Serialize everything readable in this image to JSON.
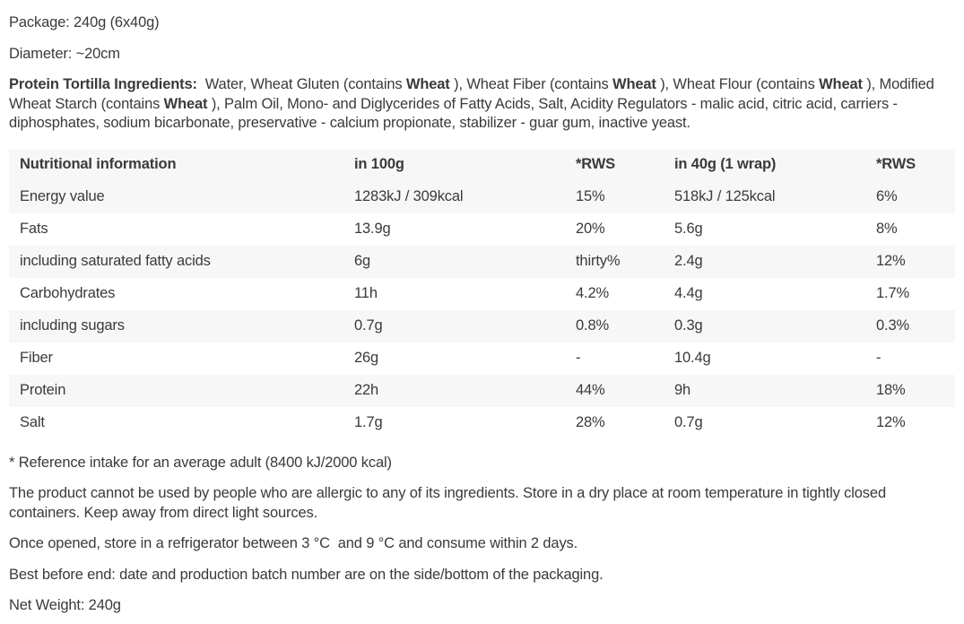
{
  "details": {
    "package": "Package: 240g (6x40g)",
    "diameter": "Diameter: ~20cm"
  },
  "ingredients": {
    "label": "Protein Tortilla Ingredients:",
    "segments": [
      {
        "text": "  Water, Wheat Gluten (contains ",
        "bold": false
      },
      {
        "text": "Wheat",
        "bold": true
      },
      {
        "text": " ), Wheat Fiber (contains ",
        "bold": false
      },
      {
        "text": "Wheat",
        "bold": true
      },
      {
        "text": " ), Wheat Flour (contains ",
        "bold": false
      },
      {
        "text": "Wheat",
        "bold": true
      },
      {
        "text": " ), Modified Wheat Starch (contains ",
        "bold": false
      },
      {
        "text": "Wheat",
        "bold": true
      },
      {
        "text": " ), Palm Oil, Mono- and Diglycerides of Fatty Acids, Salt, Acidity Regulators - malic acid, citric acid, carriers - diphosphates, sodium bicarbonate, preservative - calcium propionate, stabilizer - guar gum, inactive yeast.",
        "bold": false
      }
    ]
  },
  "nutrition_table": {
    "headers": [
      "Nutritional information",
      "in 100g",
      "*RWS",
      "in 40g (1 wrap)",
      "*RWS"
    ],
    "rows": [
      [
        "Energy value",
        "1283kJ / 309kcal",
        "15%",
        "518kJ / 125kcal",
        "6%"
      ],
      [
        "Fats",
        "13.9g",
        "20%",
        "5.6g",
        "8%"
      ],
      [
        "including saturated fatty acids",
        "6g",
        "thirty%",
        "2.4g",
        "12%"
      ],
      [
        "Carbohydrates",
        "11h",
        "4.2%",
        "4.4g",
        "1.7%"
      ],
      [
        "including sugars",
        "0.7g",
        "0.8%",
        "0.3g",
        "0.3%"
      ],
      [
        "Fiber",
        "26g",
        "-",
        "10.4g",
        "-"
      ],
      [
        "Protein",
        "22h",
        "44%",
        "9h",
        "18%"
      ],
      [
        "Salt",
        "1.7g",
        "28%",
        "0.7g",
        "12%"
      ]
    ]
  },
  "footnotes": {
    "reference_intake": "* Reference intake for an average adult (8400 kJ/2000 kcal)",
    "allergy_storage": "The product cannot be used by people who are allergic to any of its ingredients. Store in a dry place at room temperature in tightly closed containers. Keep away from direct light sources.",
    "opened_storage": "Once opened, store in a refrigerator between 3 °C  and 9 °C and consume within 2 days.",
    "best_before": "Best before end: date and production batch number are on the side/bottom of the packaging.",
    "net_weight": "Net Weight: 240g"
  },
  "colors": {
    "text": "#3a3a3a",
    "table_stripe": "#f7f7f7",
    "background": "#ffffff"
  }
}
